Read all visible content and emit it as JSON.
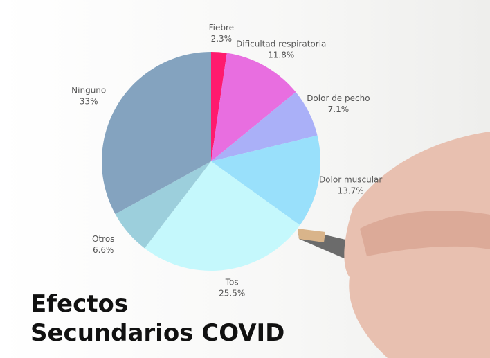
{
  "chart_data": {
    "type": "pie",
    "title": "Efectos Secundarios COVID",
    "categories": [
      "Fiebre",
      "Dificultad respiratoria",
      "Dolor de pecho",
      "Dolor muscular",
      "Tos",
      "Otros",
      "Ninguno"
    ],
    "values": [
      2.3,
      11.8,
      7.1,
      13.7,
      25.5,
      6.6,
      33
    ],
    "value_labels": [
      "2.3%",
      "11.8%",
      "7.1%",
      "13.7%",
      "25.5%",
      "6.6%",
      "33%"
    ],
    "colors": [
      "#ff1a6e",
      "#e86ee0",
      "#aab0f8",
      "#99e0fb",
      "#c5f8fc",
      "#9ccfdc",
      "#84a3bf"
    ]
  }
}
